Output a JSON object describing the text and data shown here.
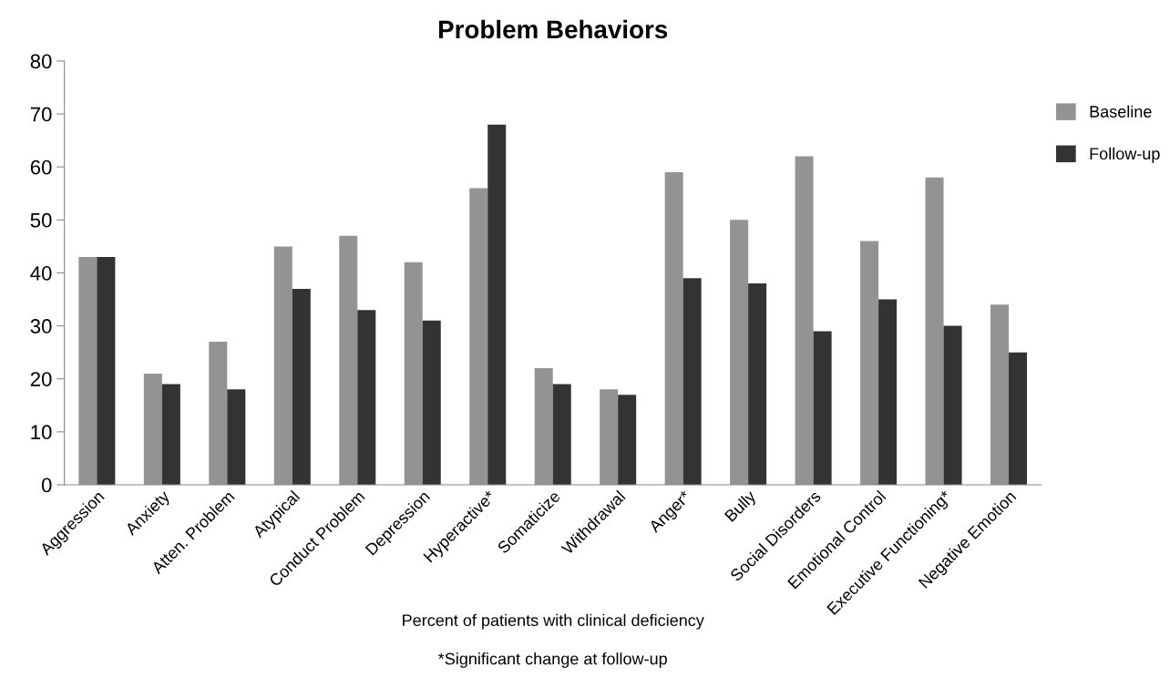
{
  "chart_data": {
    "type": "bar",
    "title": "Problem Behaviors",
    "xlabel": "Percent of patients with clinical deficiency",
    "annotations": [
      "*Significant change at follow-up"
    ],
    "categories": [
      "Aggression",
      "Anxiety",
      "Atten. Problem",
      "Atypical",
      "Conduct Problem",
      "Depression",
      "Hyperactive*",
      "Somaticize",
      "Withdrawal",
      "Anger*",
      "Bully",
      "Social Disorders",
      "Emotional Control",
      "Executive Functioning*",
      "Negative Emotion"
    ],
    "series": [
      {
        "name": "Baseline",
        "color": "#939393",
        "values": [
          43,
          21,
          27,
          45,
          47,
          42,
          56,
          22,
          18,
          59,
          50,
          62,
          46,
          58,
          34
        ]
      },
      {
        "name": "Follow-up",
        "color": "#333333",
        "values": [
          43,
          19,
          18,
          37,
          33,
          31,
          68,
          19,
          17,
          39,
          38,
          29,
          35,
          30,
          25
        ]
      }
    ],
    "ylim": [
      0,
      80
    ],
    "yticks": [
      0,
      10,
      20,
      30,
      40,
      50,
      60,
      70,
      80
    ],
    "grid": false,
    "legend": "right"
  }
}
